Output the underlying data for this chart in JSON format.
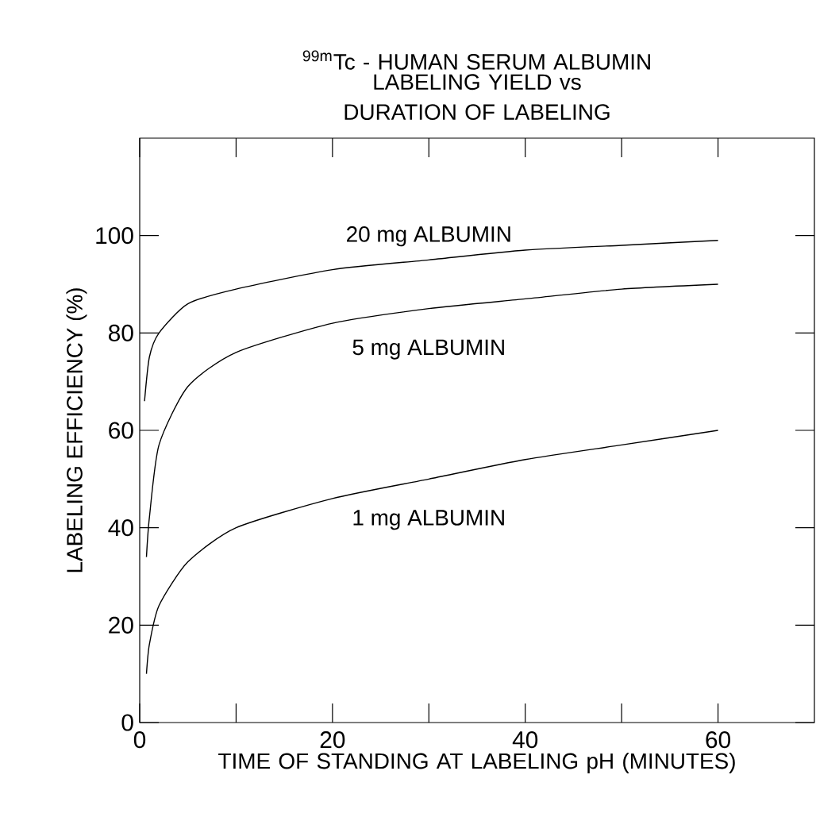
{
  "chart_data": {
    "type": "line",
    "title": "$^{99m}$Tc - HUMAN SERUM ALBUMIN",
    "subtitle": "LABELING YIELD vs DURATION OF LABELING",
    "xlabel": "TIME OF STANDING AT LABELING pH (MINUTES)",
    "ylabel": "LABELING EFFICIENCY (%)",
    "xlim": [
      0,
      70
    ],
    "ylim": [
      0,
      120
    ],
    "xticks": [
      0,
      {
        "value": 10,
        "label": null
      },
      20,
      {
        "value": 30,
        "label": null
      },
      40,
      {
        "value": 50,
        "label": null
      },
      60
    ],
    "yticks": [
      0,
      20,
      40,
      60,
      80,
      100
    ],
    "grid": false,
    "marker": "none",
    "line_style": "solid",
    "series": [
      {
        "name": "20 mg ALBUMIN",
        "color": "#000000",
        "x": [
          0.5,
          1,
          2,
          5,
          10,
          20,
          30,
          40,
          50,
          60
        ],
        "values": [
          66,
          75,
          80,
          86,
          89,
          93,
          95,
          97,
          98,
          99
        ]
      },
      {
        "name": "5 mg ALBUMIN",
        "color": "#000000",
        "x": [
          0.7,
          1,
          2,
          5,
          10,
          20,
          30,
          40,
          50,
          60
        ],
        "values": [
          34,
          42,
          57,
          69,
          76,
          82,
          85,
          87,
          89,
          90
        ]
      },
      {
        "name": "1 mg ALBUMIN",
        "color": "#000000",
        "x": [
          0.7,
          1,
          2,
          5,
          10,
          20,
          30,
          40,
          50,
          60
        ],
        "values": [
          10,
          16,
          24,
          33,
          40,
          46,
          50,
          54,
          57,
          60
        ]
      }
    ]
  }
}
